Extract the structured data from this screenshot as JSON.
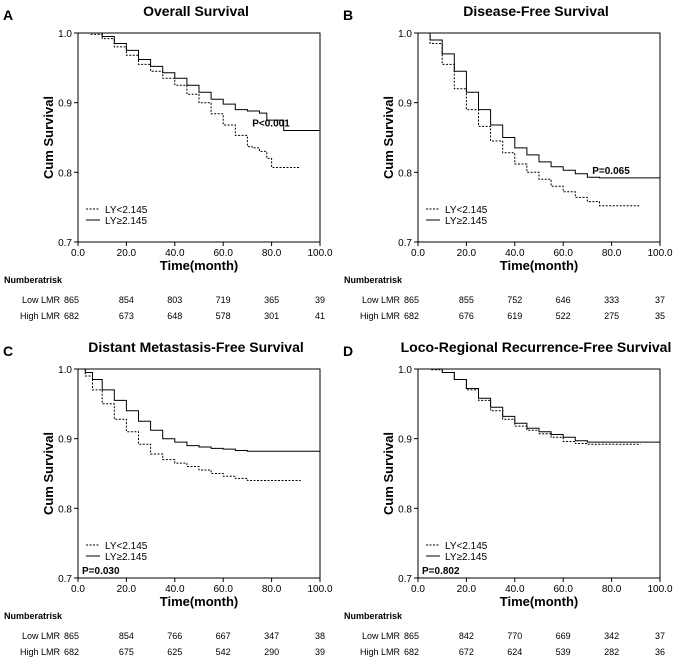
{
  "chart_data": [
    {
      "type": "line",
      "panel_label": "A",
      "title": "Overall Survival",
      "xlabel": "Time(month)",
      "ylabel": "Cum Survival",
      "xlim": [
        0,
        100
      ],
      "ylim": [
        0.7,
        1.0
      ],
      "x_ticks": [
        "0.0",
        "20.0",
        "40.0",
        "60.0",
        "80.0",
        "100.0"
      ],
      "y_ticks": [
        "0.7",
        "0.8",
        "0.9",
        "1.0"
      ],
      "legend": [
        "LY<2.145",
        "LY≥2.145"
      ],
      "p_value": "P<0.001",
      "p_position": "right",
      "series": [
        {
          "name": "LY<2.145",
          "style": "dotted",
          "x": [
            0,
            5,
            10,
            15,
            20,
            25,
            30,
            35,
            40,
            45,
            50,
            55,
            60,
            65,
            70,
            72,
            75,
            78,
            80,
            85,
            92
          ],
          "y": [
            1.0,
            0.998,
            0.992,
            0.98,
            0.968,
            0.955,
            0.945,
            0.935,
            0.925,
            0.912,
            0.9,
            0.884,
            0.868,
            0.853,
            0.837,
            0.835,
            0.83,
            0.82,
            0.807,
            0.807,
            0.807
          ]
        },
        {
          "name": "LY≥2.145",
          "style": "solid",
          "x": [
            0,
            5,
            10,
            15,
            20,
            25,
            30,
            35,
            40,
            45,
            50,
            55,
            60,
            65,
            70,
            75,
            78,
            80,
            85,
            92,
            100
          ],
          "y": [
            1.0,
            1.0,
            0.995,
            0.985,
            0.975,
            0.962,
            0.952,
            0.943,
            0.935,
            0.925,
            0.915,
            0.905,
            0.898,
            0.89,
            0.888,
            0.885,
            0.875,
            0.875,
            0.86,
            0.86,
            0.86
          ]
        }
      ],
      "risk_table": {
        "header": "Numberatrisk",
        "rows": [
          {
            "label": "Low LMR",
            "values": [
              "865",
              "854",
              "803",
              "719",
              "365",
              "39"
            ]
          },
          {
            "label": "High LMR",
            "values": [
              "682",
              "673",
              "648",
              "578",
              "301",
              "41"
            ]
          }
        ]
      }
    },
    {
      "type": "line",
      "panel_label": "B",
      "title": "Disease-Free Survival",
      "xlabel": "Time(month)",
      "ylabel": "Cum Survival",
      "xlim": [
        0,
        100
      ],
      "ylim": [
        0.7,
        1.0
      ],
      "x_ticks": [
        "0.0",
        "20.0",
        "40.0",
        "60.0",
        "80.0",
        "100.0"
      ],
      "y_ticks": [
        "0.7",
        "0.8",
        "0.9",
        "1.0"
      ],
      "legend": [
        "LY<2.145",
        "LY≥2.145"
      ],
      "p_value": "P=0.065",
      "p_position": "right",
      "series": [
        {
          "name": "LY<2.145",
          "style": "dotted",
          "x": [
            0,
            5,
            10,
            15,
            20,
            25,
            30,
            35,
            40,
            45,
            50,
            55,
            60,
            65,
            70,
            75,
            80,
            85,
            92
          ],
          "y": [
            1.0,
            0.985,
            0.955,
            0.92,
            0.89,
            0.866,
            0.845,
            0.828,
            0.812,
            0.8,
            0.79,
            0.78,
            0.772,
            0.764,
            0.758,
            0.752,
            0.752,
            0.752,
            0.752
          ]
        },
        {
          "name": "LY≥2.145",
          "style": "solid",
          "x": [
            0,
            5,
            10,
            15,
            20,
            25,
            30,
            35,
            40,
            45,
            50,
            55,
            60,
            65,
            70,
            75,
            80,
            85,
            100
          ],
          "y": [
            1.0,
            0.99,
            0.97,
            0.945,
            0.915,
            0.89,
            0.868,
            0.85,
            0.835,
            0.825,
            0.815,
            0.808,
            0.803,
            0.798,
            0.793,
            0.792,
            0.792,
            0.792,
            0.792
          ]
        }
      ],
      "risk_table": {
        "header": "Numberatrisk",
        "rows": [
          {
            "label": "Low LMR",
            "values": [
              "865",
              "855",
              "752",
              "646",
              "333",
              "37"
            ]
          },
          {
            "label": "High LMR",
            "values": [
              "682",
              "676",
              "619",
              "522",
              "275",
              "35"
            ]
          }
        ]
      }
    },
    {
      "type": "line",
      "panel_label": "C",
      "title": "Distant Metastasis-Free Survival",
      "xlabel": "Time(month)",
      "ylabel": "Cum Survival",
      "xlim": [
        0,
        100
      ],
      "ylim": [
        0.7,
        1.0
      ],
      "x_ticks": [
        "0.0",
        "20.0",
        "40.0",
        "60.0",
        "80.0",
        "100.0"
      ],
      "y_ticks": [
        "0.7",
        "0.8",
        "0.9",
        "1.0"
      ],
      "legend": [
        "LY<2.145",
        "LY≥2.145"
      ],
      "p_value": "P=0.030",
      "p_position": "left",
      "series": [
        {
          "name": "LY<2.145",
          "style": "dotted",
          "x": [
            0,
            3,
            6,
            10,
            15,
            20,
            25,
            30,
            35,
            40,
            45,
            50,
            55,
            60,
            65,
            70,
            80,
            92
          ],
          "y": [
            1.0,
            0.99,
            0.97,
            0.95,
            0.928,
            0.91,
            0.892,
            0.878,
            0.87,
            0.865,
            0.86,
            0.855,
            0.85,
            0.846,
            0.843,
            0.84,
            0.84,
            0.84
          ]
        },
        {
          "name": "LY≥2.145",
          "style": "solid",
          "x": [
            0,
            3,
            6,
            10,
            15,
            20,
            25,
            30,
            35,
            40,
            45,
            50,
            55,
            60,
            65,
            70,
            80,
            100
          ],
          "y": [
            1.0,
            0.995,
            0.985,
            0.97,
            0.955,
            0.94,
            0.925,
            0.912,
            0.9,
            0.895,
            0.89,
            0.888,
            0.886,
            0.885,
            0.883,
            0.882,
            0.882,
            0.882
          ]
        }
      ],
      "risk_table": {
        "header": "Numberatrisk",
        "rows": [
          {
            "label": "Low LMR",
            "values": [
              "865",
              "854",
              "766",
              "667",
              "347",
              "38"
            ]
          },
          {
            "label": "High LMR",
            "values": [
              "682",
              "675",
              "625",
              "542",
              "290",
              "39"
            ]
          }
        ]
      }
    },
    {
      "type": "line",
      "panel_label": "D",
      "title": "Loco-Regional Recurrence-Free Survival",
      "xlabel": "Time(month)",
      "ylabel": "Cum Survival",
      "xlim": [
        0,
        100
      ],
      "ylim": [
        0.7,
        1.0
      ],
      "x_ticks": [
        "0.0",
        "20.0",
        "40.0",
        "60.0",
        "80.0",
        "100.0"
      ],
      "y_ticks": [
        "0.7",
        "0.8",
        "0.9",
        "1.0"
      ],
      "legend": [
        "LY<2.145",
        "LY≥2.145"
      ],
      "p_value": "P=0.802",
      "p_position": "left",
      "series": [
        {
          "name": "LY<2.145",
          "style": "dotted",
          "x": [
            0,
            5,
            10,
            15,
            20,
            25,
            30,
            35,
            40,
            45,
            50,
            55,
            60,
            65,
            70,
            80,
            92
          ],
          "y": [
            1.0,
            0.999,
            0.995,
            0.985,
            0.97,
            0.955,
            0.94,
            0.928,
            0.918,
            0.912,
            0.907,
            0.902,
            0.896,
            0.893,
            0.892,
            0.892,
            0.892
          ]
        },
        {
          "name": "LY≥2.145",
          "style": "solid",
          "x": [
            0,
            5,
            10,
            15,
            20,
            25,
            30,
            35,
            40,
            45,
            50,
            55,
            60,
            65,
            70,
            80,
            100
          ],
          "y": [
            1.0,
            1.0,
            0.995,
            0.985,
            0.972,
            0.958,
            0.945,
            0.932,
            0.922,
            0.915,
            0.91,
            0.906,
            0.902,
            0.897,
            0.895,
            0.895,
            0.895
          ]
        }
      ],
      "risk_table": {
        "header": "Numberatrisk",
        "rows": [
          {
            "label": "Low LMR",
            "values": [
              "865",
              "842",
              "770",
              "669",
              "342",
              "37"
            ]
          },
          {
            "label": "High LMR",
            "values": [
              "682",
              "672",
              "624",
              "539",
              "282",
              "36"
            ]
          }
        ]
      }
    }
  ]
}
